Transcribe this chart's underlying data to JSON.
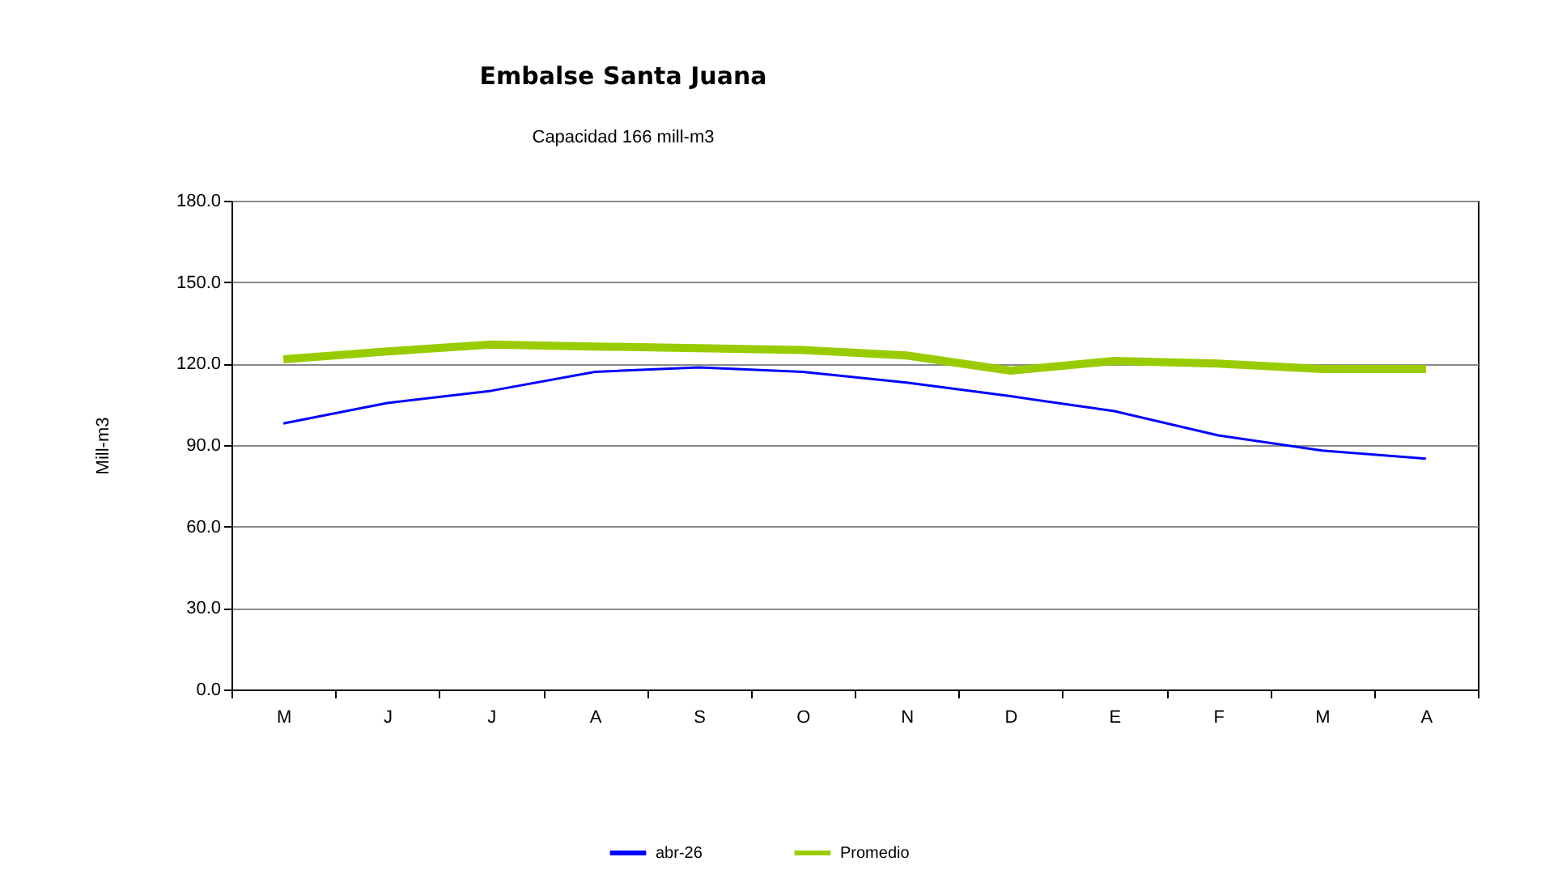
{
  "chart_data": {
    "type": "line",
    "title": "Embalse Santa Juana",
    "subtitle": "Capacidad 166 mill-m3",
    "ylabel": "Mill-m3",
    "categories": [
      "M",
      "J",
      "J",
      "A",
      "S",
      "O",
      "N",
      "D",
      "E",
      "F",
      "M",
      "A"
    ],
    "series": [
      {
        "name": "abr-26",
        "color": "#0000ff",
        "values": [
          98,
          105.5,
          110,
          117,
          118.6,
          117,
          113,
          108,
          102.5,
          93.6,
          88,
          85
        ]
      },
      {
        "name": "Promedio",
        "color": "#99cc00",
        "values": [
          121.6,
          124.5,
          127,
          126.3,
          125.7,
          125,
          123,
          117.4,
          121,
          120,
          118,
          118
        ]
      }
    ],
    "ylim": [
      0,
      180
    ],
    "yticks": [
      {
        "value": 0,
        "label": "0.0"
      },
      {
        "value": 30,
        "label": "30.0"
      },
      {
        "value": 60,
        "label": "60.0"
      },
      {
        "value": 90,
        "label": "90.0"
      },
      {
        "value": 120,
        "label": "120.0"
      },
      {
        "value": 150,
        "label": "150.0"
      },
      {
        "value": 180,
        "label": "180.0"
      }
    ],
    "grid": "y",
    "legend": "bottom",
    "marker": "none",
    "line_style": "solid"
  }
}
